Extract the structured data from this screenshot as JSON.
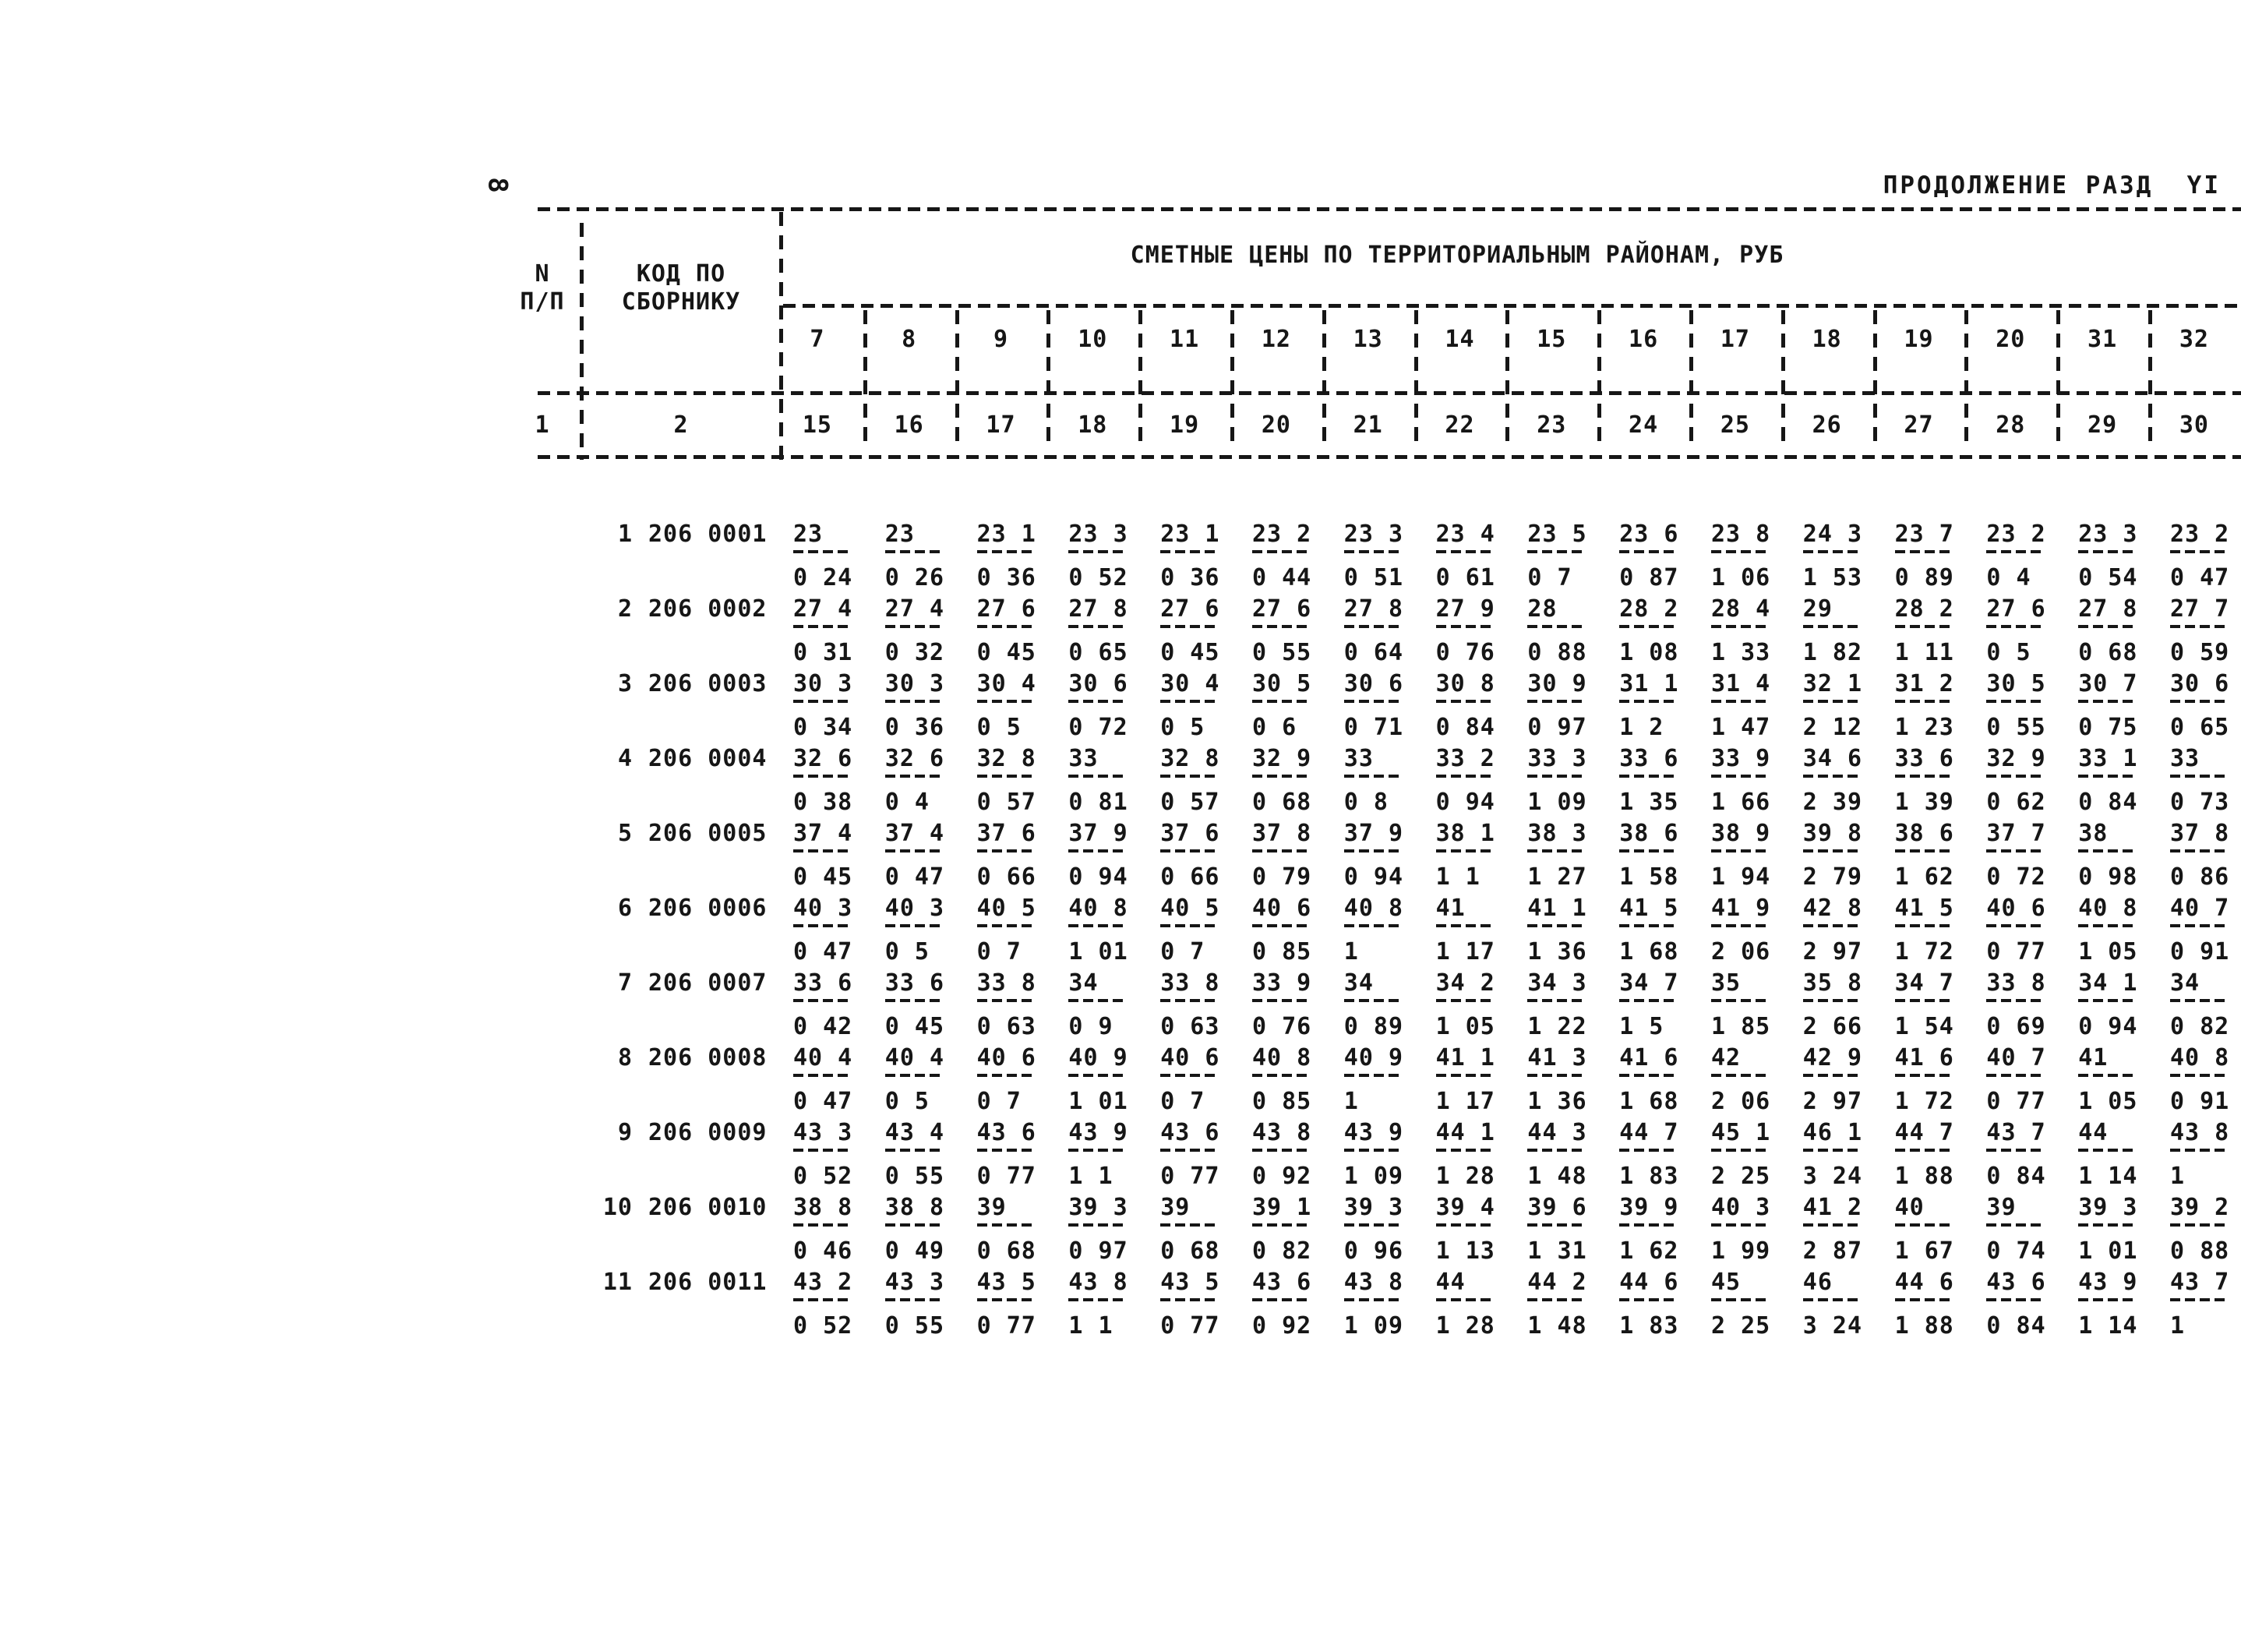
{
  "page": {
    "page_number": "8",
    "title": "ПРОДОЛЖЕНИЕ РАЗД  YI"
  },
  "table": {
    "group_header": "СМЕТНЫЕ ЦЕНЫ ПО ТЕРРИТОРИАЛЬНЫМ РАЙОНАМ, РУБ",
    "row_header": {
      "num_line1": "N",
      "num_line2": "П/П",
      "code_line1": "КОД ПО",
      "code_line2": "СБОРНИКУ"
    },
    "district_numbers": [
      "7",
      "8",
      "9",
      "10",
      "11",
      "12",
      "13",
      "14",
      "15",
      "16",
      "17",
      "18",
      "19",
      "20",
      "31",
      "32"
    ],
    "column_indices": [
      "1",
      "2",
      "15",
      "16",
      "17",
      "18",
      "19",
      "20",
      "21",
      "22",
      "23",
      "24",
      "25",
      "26",
      "27",
      "28",
      "29",
      "30"
    ],
    "rows": [
      {
        "n": "1",
        "code": "206 0001",
        "values": [
          "23",
          "23",
          "23 1",
          "23 3",
          "23 1",
          "23 2",
          "23 3",
          "23 4",
          "23 5",
          "23 6",
          "23 8",
          "24 3",
          "23 7",
          "23 2",
          "23 3",
          "23 2"
        ],
        "sub": [
          "0 24",
          "0 26",
          "0 36",
          "0 52",
          "0 36",
          "0 44",
          "0 51",
          "0 61",
          "0 7",
          "0 87",
          "1 06",
          "1 53",
          "0 89",
          "0 4",
          "0 54",
          "0 47"
        ]
      },
      {
        "n": "2",
        "code": "206 0002",
        "values": [
          "27 4",
          "27 4",
          "27 6",
          "27 8",
          "27 6",
          "27 6",
          "27 8",
          "27 9",
          "28",
          "28 2",
          "28 4",
          "29",
          "28 2",
          "27 6",
          "27 8",
          "27 7"
        ],
        "sub": [
          "0 31",
          "0 32",
          "0 45",
          "0 65",
          "0 45",
          "0 55",
          "0 64",
          "0 76",
          "0 88",
          "1 08",
          "1 33",
          "1 82",
          "1 11",
          "0 5",
          "0 68",
          "0 59"
        ]
      },
      {
        "n": "3",
        "code": "206 0003",
        "values": [
          "30 3",
          "30 3",
          "30 4",
          "30 6",
          "30 4",
          "30 5",
          "30 6",
          "30 8",
          "30 9",
          "31 1",
          "31 4",
          "32 1",
          "31 2",
          "30 5",
          "30 7",
          "30 6"
        ],
        "sub": [
          "0 34",
          "0 36",
          "0 5",
          "0 72",
          "0 5",
          "0 6",
          "0 71",
          "0 84",
          "0 97",
          "1 2",
          "1 47",
          "2 12",
          "1 23",
          "0 55",
          "0 75",
          "0 65"
        ]
      },
      {
        "n": "4",
        "code": "206 0004",
        "values": [
          "32 6",
          "32 6",
          "32 8",
          "33",
          "32 8",
          "32 9",
          "33",
          "33 2",
          "33 3",
          "33 6",
          "33 9",
          "34 6",
          "33 6",
          "32 9",
          "33 1",
          "33"
        ],
        "sub": [
          "0 38",
          "0 4",
          "0 57",
          "0 81",
          "0 57",
          "0 68",
          "0 8",
          "0 94",
          "1 09",
          "1 35",
          "1 66",
          "2 39",
          "1 39",
          "0 62",
          "0 84",
          "0 73"
        ]
      },
      {
        "n": "5",
        "code": "206 0005",
        "values": [
          "37 4",
          "37 4",
          "37 6",
          "37 9",
          "37 6",
          "37 8",
          "37 9",
          "38 1",
          "38 3",
          "38 6",
          "38 9",
          "39 8",
          "38 6",
          "37 7",
          "38",
          "37 8"
        ],
        "sub": [
          "0 45",
          "0 47",
          "0 66",
          "0 94",
          "0 66",
          "0 79",
          "0 94",
          "1 1",
          "1 27",
          "1 58",
          "1 94",
          "2 79",
          "1 62",
          "0 72",
          "0 98",
          "0 86"
        ]
      },
      {
        "n": "6",
        "code": "206 0006",
        "values": [
          "40 3",
          "40 3",
          "40 5",
          "40 8",
          "40 5",
          "40 6",
          "40 8",
          "41",
          "41 1",
          "41 5",
          "41 9",
          "42 8",
          "41 5",
          "40 6",
          "40 8",
          "40 7"
        ],
        "sub": [
          "0 47",
          "0 5",
          "0 7",
          "1 01",
          "0 7",
          "0 85",
          "1",
          "1 17",
          "1 36",
          "1 68",
          "2 06",
          "2 97",
          "1 72",
          "0 77",
          "1 05",
          "0 91"
        ]
      },
      {
        "n": "7",
        "code": "206 0007",
        "values": [
          "33 6",
          "33 6",
          "33 8",
          "34",
          "33 8",
          "33 9",
          "34",
          "34 2",
          "34 3",
          "34 7",
          "35",
          "35 8",
          "34 7",
          "33 8",
          "34 1",
          "34"
        ],
        "sub": [
          "0 42",
          "0 45",
          "0 63",
          "0 9",
          "0 63",
          "0 76",
          "0 89",
          "1 05",
          "1 22",
          "1 5",
          "1 85",
          "2 66",
          "1 54",
          "0 69",
          "0 94",
          "0 82"
        ]
      },
      {
        "n": "8",
        "code": "206 0008",
        "values": [
          "40 4",
          "40 4",
          "40 6",
          "40 9",
          "40 6",
          "40 8",
          "40 9",
          "41 1",
          "41 3",
          "41 6",
          "42",
          "42 9",
          "41 6",
          "40 7",
          "41",
          "40 8"
        ],
        "sub": [
          "0 47",
          "0 5",
          "0 7",
          "1 01",
          "0 7",
          "0 85",
          "1",
          "1 17",
          "1 36",
          "1 68",
          "2 06",
          "2 97",
          "1 72",
          "0 77",
          "1 05",
          "0 91"
        ]
      },
      {
        "n": "9",
        "code": "206 0009",
        "values": [
          "43 3",
          "43 4",
          "43 6",
          "43 9",
          "43 6",
          "43 8",
          "43 9",
          "44 1",
          "44 3",
          "44 7",
          "45 1",
          "46 1",
          "44 7",
          "43 7",
          "44",
          "43 8"
        ],
        "sub": [
          "0 52",
          "0 55",
          "0 77",
          "1 1",
          "0 77",
          "0 92",
          "1 09",
          "1 28",
          "1 48",
          "1 83",
          "2 25",
          "3 24",
          "1 88",
          "0 84",
          "1 14",
          "1"
        ]
      },
      {
        "n": "10",
        "code": "206 0010",
        "values": [
          "38 8",
          "38 8",
          "39",
          "39 3",
          "39",
          "39 1",
          "39 3",
          "39 4",
          "39 6",
          "39 9",
          "40 3",
          "41 2",
          "40",
          "39",
          "39 3",
          "39 2"
        ],
        "sub": [
          "0 46",
          "0 49",
          "0 68",
          "0 97",
          "0 68",
          "0 82",
          "0 96",
          "1 13",
          "1 31",
          "1 62",
          "1 99",
          "2 87",
          "1 67",
          "0 74",
          "1 01",
          "0 88"
        ]
      },
      {
        "n": "11",
        "code": "206 0011",
        "values": [
          "43 2",
          "43 3",
          "43 5",
          "43 8",
          "43 5",
          "43 6",
          "43 8",
          "44",
          "44 2",
          "44 6",
          "45",
          "46",
          "44 6",
          "43 6",
          "43 9",
          "43 7"
        ],
        "sub": [
          "0 52",
          "0 55",
          "0 77",
          "1 1",
          "0 77",
          "0 92",
          "1 09",
          "1 28",
          "1 48",
          "1 83",
          "2 25",
          "3 24",
          "1 88",
          "0 84",
          "1 14",
          "1"
        ]
      }
    ]
  }
}
